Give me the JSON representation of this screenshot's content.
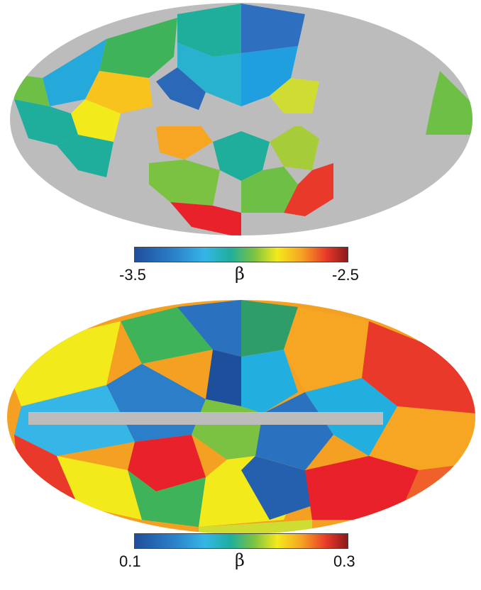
{
  "maps": [
    {
      "name": "top",
      "colorbar": {
        "min_label": "-3.5",
        "max_label": "-2.5",
        "symbol": "β"
      }
    },
    {
      "name": "bottom",
      "colorbar": {
        "min_label": "0.1",
        "max_label": "0.3",
        "symbol": "β"
      }
    }
  ],
  "colors": {
    "masked": "#bcbcbc",
    "dark_blue": "#1d4f9c",
    "blue": "#2b7fc8",
    "light_blue": "#35b6e6",
    "teal": "#1fae9c",
    "green": "#3fb35a",
    "yellow_green": "#a6cc3a",
    "lime": "#cfdd33",
    "yellow": "#f3ea1c",
    "orange": "#f6a623",
    "red_orange": "#f0602b",
    "red": "#e8392a"
  }
}
